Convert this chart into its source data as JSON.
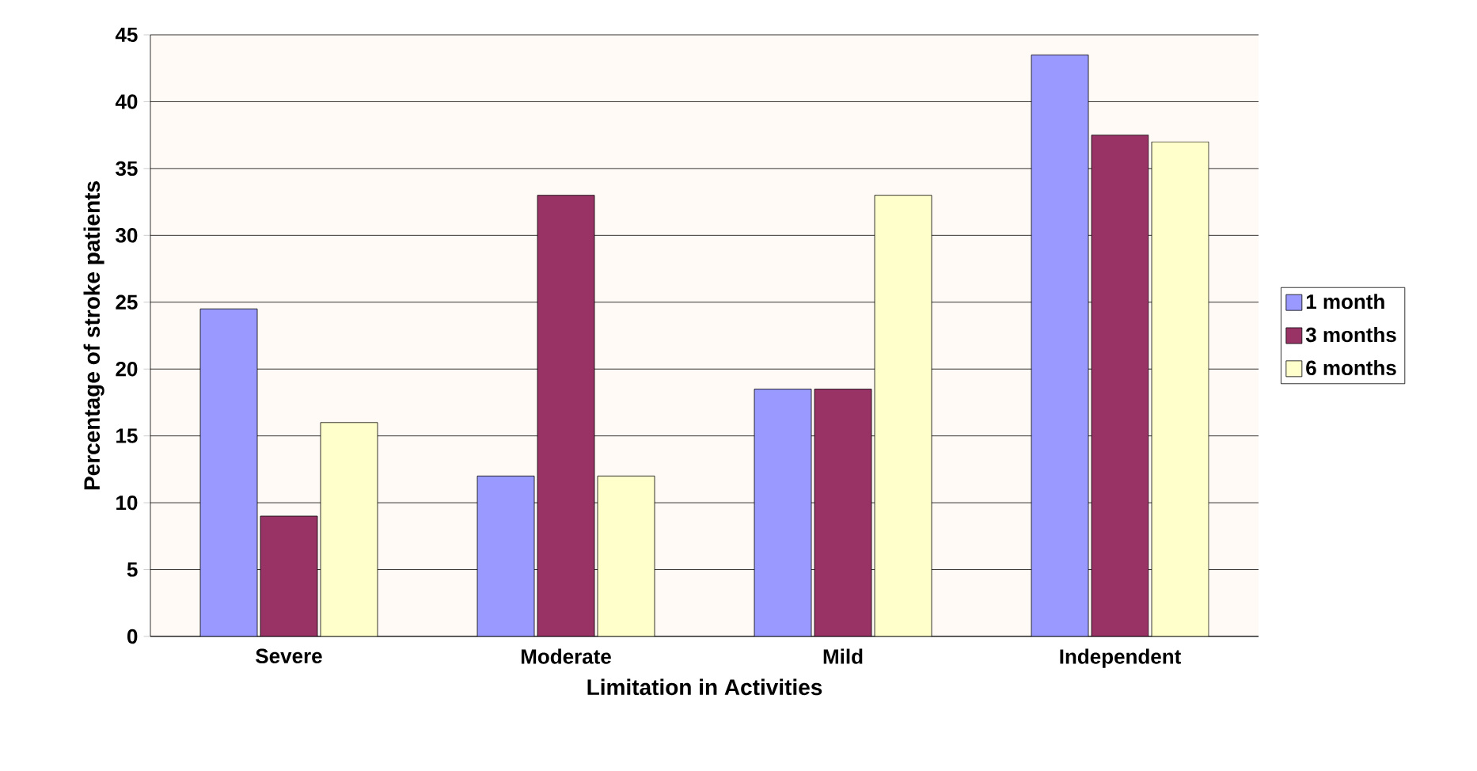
{
  "chart_data": {
    "type": "bar",
    "xlabel": "Limitation in Activities",
    "ylabel": "Percentage of stroke patients",
    "categories": [
      "Severe",
      "Moderate",
      "Mild",
      "Independent"
    ],
    "series": [
      {
        "name": "1 month",
        "color": "#9999ff",
        "values": [
          24.5,
          12,
          18.5,
          43.5
        ]
      },
      {
        "name": "3 months",
        "color": "#993366",
        "values": [
          9,
          33,
          18.5,
          37.5
        ]
      },
      {
        "name": "6 months",
        "color": "#ffffcc",
        "values": [
          16,
          12,
          33,
          37
        ]
      }
    ],
    "ylim": [
      0,
      45
    ],
    "yticks": [
      0,
      5,
      10,
      15,
      20,
      25,
      30,
      35,
      40,
      45
    ],
    "grid": "y",
    "legend": "right"
  }
}
